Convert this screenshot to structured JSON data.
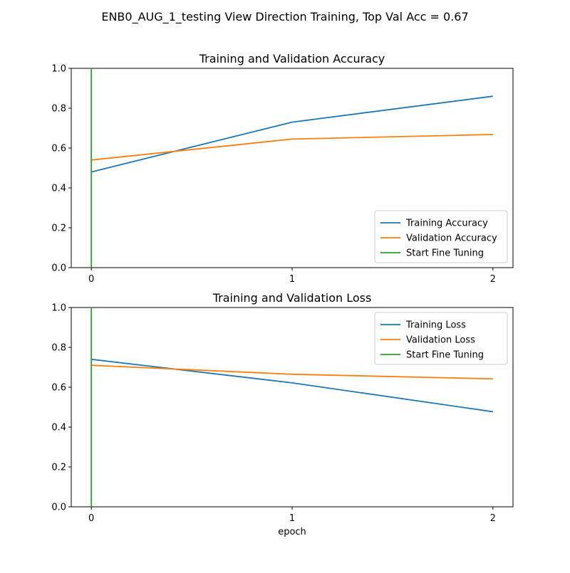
{
  "figure": {
    "suptitle": "ENB0_AUG_1_testing View Direction Training, Top Val Acc = 0.67"
  },
  "chart_data": [
    {
      "type": "line",
      "title": "Training and Validation Accuracy",
      "xlabel": "",
      "ylabel": "",
      "x": [
        0,
        1,
        2
      ],
      "xticks": [
        "0",
        "1",
        "2"
      ],
      "xlim": [
        -0.1,
        2.1
      ],
      "ylim": [
        0.0,
        1.0
      ],
      "yticks": [
        "0.0",
        "0.2",
        "0.4",
        "0.6",
        "0.8",
        "1.0"
      ],
      "series": [
        {
          "name": "Training Accuracy",
          "values": [
            0.48,
            0.73,
            0.86
          ],
          "color": "#1f77b4"
        },
        {
          "name": "Validation Accuracy",
          "values": [
            0.54,
            0.645,
            0.668
          ],
          "color": "#ff7f0e"
        }
      ],
      "vline": {
        "name": "Start Fine Tuning",
        "x": 0,
        "color": "#2ca02c"
      },
      "legend": "lower-right",
      "grid": false
    },
    {
      "type": "line",
      "title": "Training and Validation Loss",
      "xlabel": "epoch",
      "ylabel": "",
      "x": [
        0,
        1,
        2
      ],
      "xticks": [
        "0",
        "1",
        "2"
      ],
      "xlim": [
        -0.1,
        2.1
      ],
      "ylim": [
        0.0,
        1.0
      ],
      "yticks": [
        "0.0",
        "0.2",
        "0.4",
        "0.6",
        "0.8",
        "1.0"
      ],
      "series": [
        {
          "name": "Training Loss",
          "values": [
            0.74,
            0.622,
            0.477
          ],
          "color": "#1f77b4"
        },
        {
          "name": "Validation Loss",
          "values": [
            0.71,
            0.665,
            0.642
          ],
          "color": "#ff7f0e"
        }
      ],
      "vline": {
        "name": "Start Fine Tuning",
        "x": 0,
        "color": "#2ca02c"
      },
      "legend": "upper-right",
      "grid": false
    }
  ]
}
